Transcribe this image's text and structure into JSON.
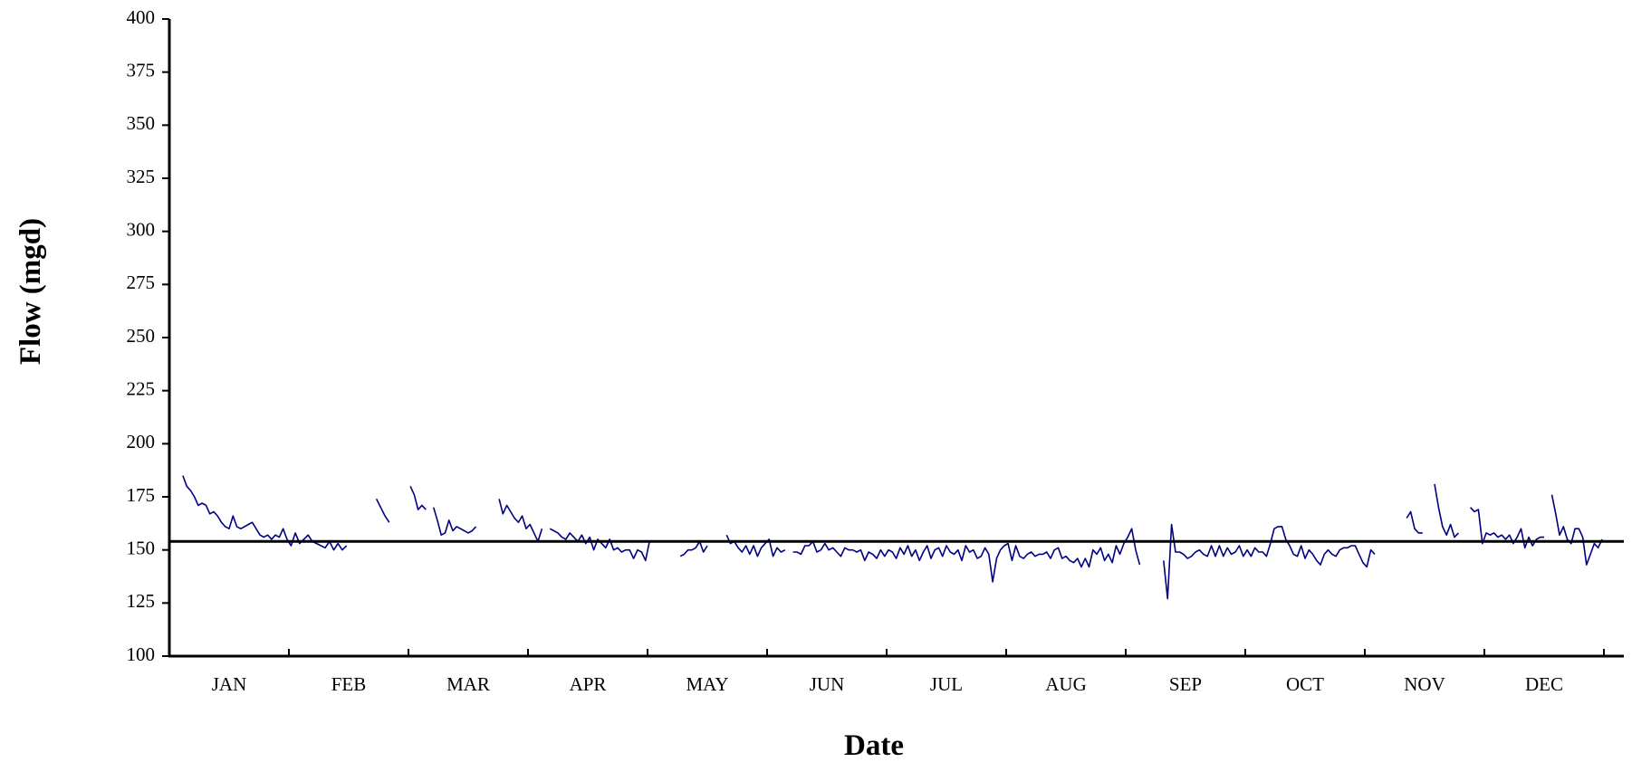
{
  "chart_data": {
    "type": "line",
    "x_title": "Date",
    "y_title": "Flow (mgd)",
    "categories": [
      "JAN",
      "FEB",
      "MAR",
      "APR",
      "MAY",
      "JUN",
      "JUL",
      "AUG",
      "SEP",
      "OCT",
      "NOV",
      "DEC"
    ],
    "ylim": [
      100,
      400
    ],
    "yticks": [
      100,
      125,
      150,
      175,
      200,
      225,
      250,
      275,
      300,
      325,
      350,
      375,
      400
    ],
    "reference_line": 154,
    "reference_color": "#000000",
    "series": [
      {
        "name": "Flow",
        "color": "#000080",
        "values": [
          [
            null,
            null,
            null,
            185,
            180,
            178,
            175,
            171,
            172,
            171,
            167,
            168,
            166,
            163,
            161,
            160,
            166,
            161,
            160,
            161,
            162,
            163,
            160,
            157,
            156,
            157,
            155,
            157,
            156,
            160,
            155
          ],
          [
            152,
            158,
            153,
            155,
            157,
            154,
            153,
            152,
            151,
            154,
            150,
            153,
            150,
            152,
            null,
            null,
            null,
            null,
            null,
            null,
            174,
            170,
            166,
            163,
            null,
            null,
            null,
            null
          ],
          [
            180,
            176,
            169,
            171,
            169,
            null,
            170,
            164,
            157,
            158,
            164,
            159,
            161,
            160,
            159,
            158,
            159,
            161,
            null,
            null,
            null,
            null,
            null,
            174,
            167,
            171,
            168,
            165,
            163,
            166,
            160
          ],
          [
            162,
            158,
            154,
            160,
            null,
            160,
            159,
            158,
            156,
            155,
            158,
            156,
            154,
            157,
            153,
            156,
            150,
            155,
            153,
            151,
            155,
            150,
            151,
            149,
            150,
            150,
            146,
            150,
            149,
            145
          ],
          [
            154,
            null,
            null,
            null,
            null,
            null,
            null,
            null,
            147,
            148,
            150,
            150,
            151,
            154,
            149,
            152,
            null,
            null,
            null,
            null,
            157,
            153,
            154,
            151,
            149,
            152,
            148,
            152,
            147,
            151,
            153
          ],
          [
            155,
            147,
            151,
            149,
            150,
            null,
            149,
            149,
            148,
            152,
            152,
            154,
            149,
            150,
            153,
            150,
            151,
            149,
            147,
            151,
            150,
            150,
            149,
            150,
            145,
            149,
            148,
            146,
            150,
            147
          ],
          [
            150,
            149,
            146,
            151,
            148,
            152,
            147,
            150,
            145,
            149,
            152,
            146,
            150,
            151,
            147,
            152,
            149,
            148,
            150,
            145,
            152,
            149,
            150,
            146,
            147,
            151,
            148,
            135,
            146,
            150,
            152
          ],
          [
            153,
            145,
            152,
            147,
            146,
            148,
            149,
            147,
            148,
            148,
            149,
            146,
            150,
            151,
            146,
            147,
            145,
            144,
            146,
            142,
            146,
            142,
            150,
            148,
            151,
            145,
            148,
            144,
            152,
            148,
            153
          ],
          [
            156,
            160,
            150,
            143,
            null,
            null,
            null,
            null,
            null,
            145,
            127,
            162,
            149,
            149,
            148,
            146,
            147,
            149,
            150,
            148,
            147,
            152,
            147,
            152,
            147,
            151,
            148,
            149,
            152,
            147
          ],
          [
            150,
            147,
            151,
            149,
            149,
            147,
            153,
            160,
            161,
            161,
            155,
            152,
            148,
            147,
            152,
            146,
            150,
            148,
            145,
            143,
            148,
            150,
            148,
            147,
            150,
            151,
            151,
            152,
            152,
            148,
            144
          ],
          [
            142,
            150,
            148,
            null,
            null,
            null,
            null,
            null,
            null,
            null,
            165,
            168,
            160,
            158,
            158,
            null,
            null,
            181,
            170,
            161,
            157,
            162,
            156,
            158,
            null,
            null,
            170,
            168,
            169,
            153
          ],
          [
            158,
            157,
            158,
            156,
            157,
            155,
            157,
            153,
            156,
            160,
            151,
            156,
            152,
            155,
            156,
            156,
            null,
            176,
            167,
            157,
            161,
            155,
            153,
            160,
            160,
            156,
            143,
            148,
            153,
            151,
            155
          ]
        ]
      }
    ]
  }
}
